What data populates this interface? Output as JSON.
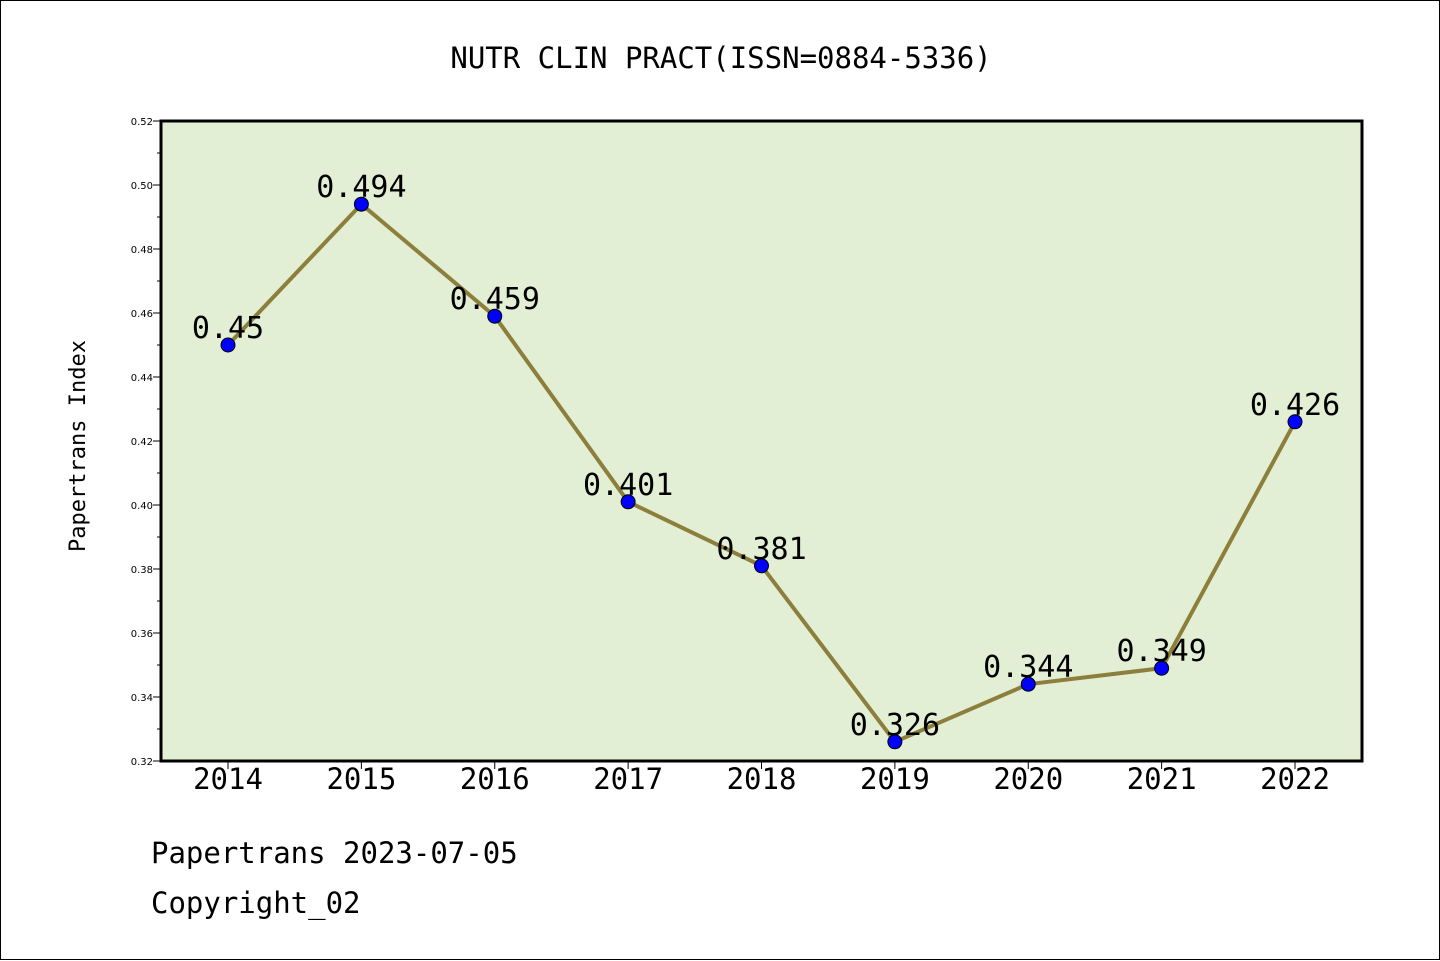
{
  "chart_data": {
    "type": "line",
    "title": "NUTR CLIN PRACT(ISSN=0884-5336)",
    "xlabel": "",
    "ylabel": "Papertrans Index",
    "categories": [
      "2014",
      "2015",
      "2016",
      "2017",
      "2018",
      "2019",
      "2020",
      "2021",
      "2022"
    ],
    "series": [
      {
        "values": [
          0.45,
          0.494,
          0.459,
          0.401,
          0.381,
          0.326,
          0.344,
          0.349,
          0.426
        ],
        "data_labels": [
          "0.45",
          "0.494",
          "0.459",
          "0.401",
          "0.381",
          "0.326",
          "0.344",
          "0.349",
          "0.426"
        ],
        "line_color": "#8c7f3c",
        "marker_color": "#0000ff"
      }
    ],
    "ylim": [
      0.32,
      0.52
    ],
    "yticks": [
      "0.32",
      "0.34",
      "0.36",
      "0.38",
      "0.40",
      "0.42",
      "0.44",
      "0.46",
      "0.48",
      "0.50",
      "0.52"
    ],
    "grid": false,
    "legend": "none",
    "plot_background": "#e2efd5"
  },
  "footer": {
    "line1": "Papertrans 2023-07-05",
    "line2": "Copyright_02"
  }
}
